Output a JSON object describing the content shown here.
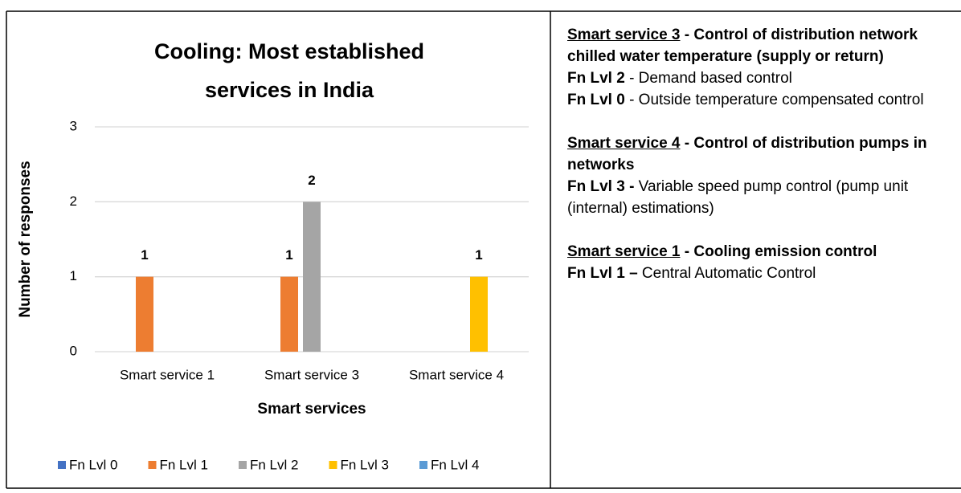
{
  "chart_data": {
    "type": "bar",
    "title": "Cooling: Most established services in India",
    "x_label": "Smart services",
    "y_label": "Number of responses",
    "categories": [
      "Smart service 1",
      "Smart service 3",
      "Smart service 4"
    ],
    "series": [
      {
        "name": "Fn Lvl 0",
        "color": "#4472c4",
        "values": [
          0,
          0,
          0
        ]
      },
      {
        "name": "Fn Lvl 1",
        "color": "#ed7d31",
        "values": [
          1,
          1,
          0
        ]
      },
      {
        "name": "Fn Lvl 2",
        "color": "#a5a5a5",
        "values": [
          0,
          2,
          0
        ]
      },
      {
        "name": "Fn Lvl 3",
        "color": "#ffc000",
        "values": [
          0,
          0,
          1
        ]
      },
      {
        "name": "Fn Lvl 4",
        "color": "#5b9bd5",
        "values": [
          0,
          0,
          0
        ]
      }
    ],
    "ylim": [
      0,
      3
    ],
    "yticks": [
      0,
      1,
      2,
      3
    ],
    "grid": true,
    "legend": "bottom"
  },
  "panel": [
    {
      "service": "Smart service 3",
      "description": " - Control of distribution network chilled water temperature (supply or return)",
      "levels": [
        {
          "level": "Fn Lvl 2",
          "text": " - Demand based control"
        },
        {
          "level": "Fn Lvl 0",
          "text": " - Outside temperature compensated control"
        }
      ]
    },
    {
      "service": "Smart service 4",
      "description": " - Control of distribution pumps in networks",
      "levels": [
        {
          "level": "Fn Lvl 3 -",
          "text": " Variable speed pump control (pump unit (internal) estimations)"
        }
      ]
    },
    {
      "service": "Smart service 1",
      "description": " - Cooling emission control",
      "levels": [
        {
          "level": "Fn Lvl 1 –",
          "text": " Central Automatic Control"
        }
      ]
    }
  ]
}
